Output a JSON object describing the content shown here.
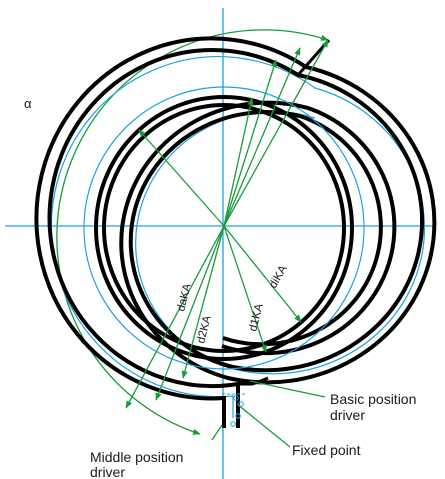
{
  "diagram": {
    "angle_label": "α",
    "dimension_labels": {
      "daKA": "daKA",
      "d2KA": "d2KA",
      "d1KA": "d1KA",
      "diKA": "diKA"
    },
    "callouts": {
      "basic_position_line1": "Basic position",
      "basic_position_line2": "driver",
      "fixed_point": "Fixed point",
      "middle_position_line1": "Middle position",
      "middle_position_line2": "driver"
    },
    "colors": {
      "spring": "#000000",
      "centerline": "#1ca3e0",
      "dimension": "#1a9a3a"
    }
  }
}
